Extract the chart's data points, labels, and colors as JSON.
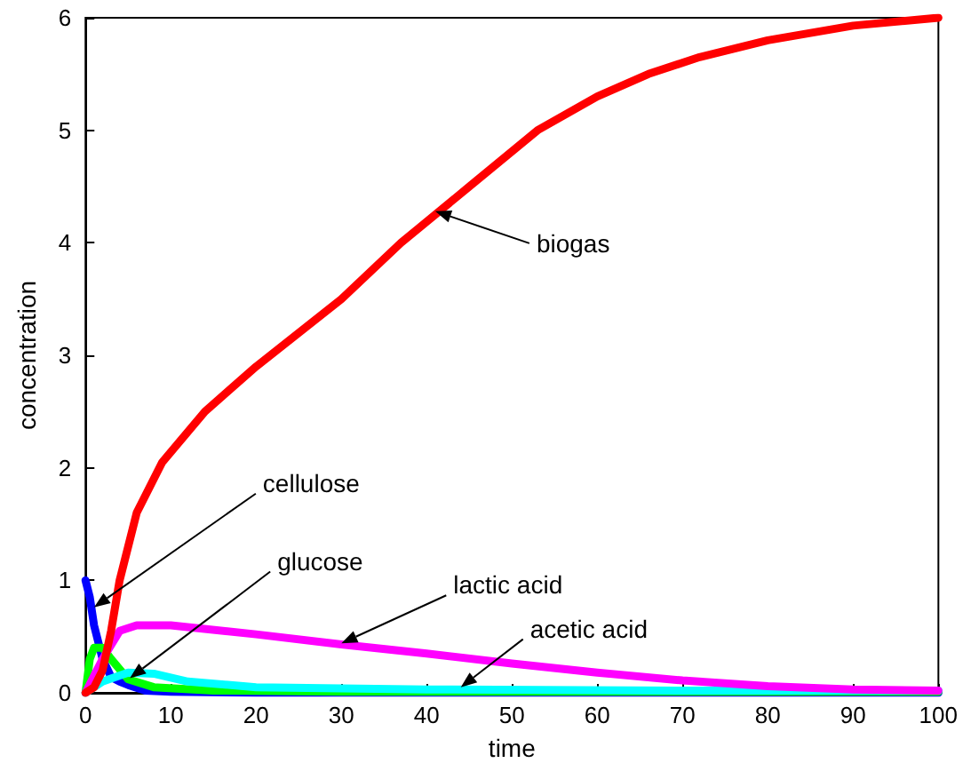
{
  "chart_data": {
    "type": "line",
    "xlabel": "time",
    "ylabel": "concentration",
    "xlim": [
      0,
      100
    ],
    "xticks": [
      0,
      10,
      20,
      30,
      40,
      50,
      60,
      70,
      80,
      90,
      100
    ],
    "ylim": [
      0,
      6
    ],
    "yticks": [
      0,
      1,
      2,
      3,
      4,
      5,
      6
    ],
    "grid": false,
    "marker": "none",
    "line_style": "solid",
    "series": [
      {
        "color": "#0000ff",
        "x": [
          0,
          0.5,
          1,
          2,
          3,
          4,
          5,
          7,
          10,
          20,
          40,
          60,
          100
        ],
        "values": [
          1,
          0.85,
          0.6,
          0.3,
          0.14,
          0.1,
          0.07,
          0.02,
          0.01,
          0,
          0,
          0,
          0
        ]
      },
      {
        "color": "#00ff00",
        "x": [
          0,
          0.5,
          1,
          2,
          3,
          5,
          8,
          15,
          30,
          50,
          70,
          100
        ],
        "values": [
          0,
          0.3,
          0.4,
          0.4,
          0.3,
          0.12,
          0.05,
          0.02,
          0.01,
          0.01,
          0.01,
          0.01
        ]
      },
      {
        "color": "#00ffff",
        "x": [
          0,
          2,
          5,
          8,
          12,
          20,
          40,
          70,
          100
        ],
        "values": [
          0,
          0.1,
          0.18,
          0.17,
          0.1,
          0.05,
          0.03,
          0.02,
          0.02
        ]
      },
      {
        "color": "#ff00ff",
        "x": [
          0,
          2,
          4,
          6,
          10,
          20,
          30,
          40,
          50,
          60,
          70,
          80,
          90,
          100
        ],
        "values": [
          0,
          0.3,
          0.55,
          0.6,
          0.6,
          0.52,
          0.43,
          0.35,
          0.26,
          0.18,
          0.11,
          0.06,
          0.03,
          0.02
        ]
      },
      {
        "color": "#ff0000",
        "x": [
          0,
          1,
          2,
          3,
          4,
          6,
          9,
          14,
          20,
          30,
          37,
          45,
          53,
          60,
          66,
          72,
          80,
          90,
          100
        ],
        "values": [
          0,
          0.05,
          0.2,
          0.55,
          1,
          1.6,
          2.05,
          2.5,
          2.9,
          3.5,
          4,
          4.5,
          5,
          5.3,
          5.5,
          5.65,
          5.8,
          5.93,
          6
        ]
      }
    ],
    "annotations": [
      {
        "text": "biogas",
        "x": 41,
        "y": 4.28
      },
      {
        "text": "cellulose",
        "x": 1,
        "y": 0.76
      },
      {
        "text": "glucose",
        "x": 5.2,
        "y": 0.13
      },
      {
        "text": "lactic acid",
        "x": 30,
        "y": 0.44
      },
      {
        "text": "acetic acid",
        "x": 44,
        "y": 0.05
      }
    ]
  }
}
